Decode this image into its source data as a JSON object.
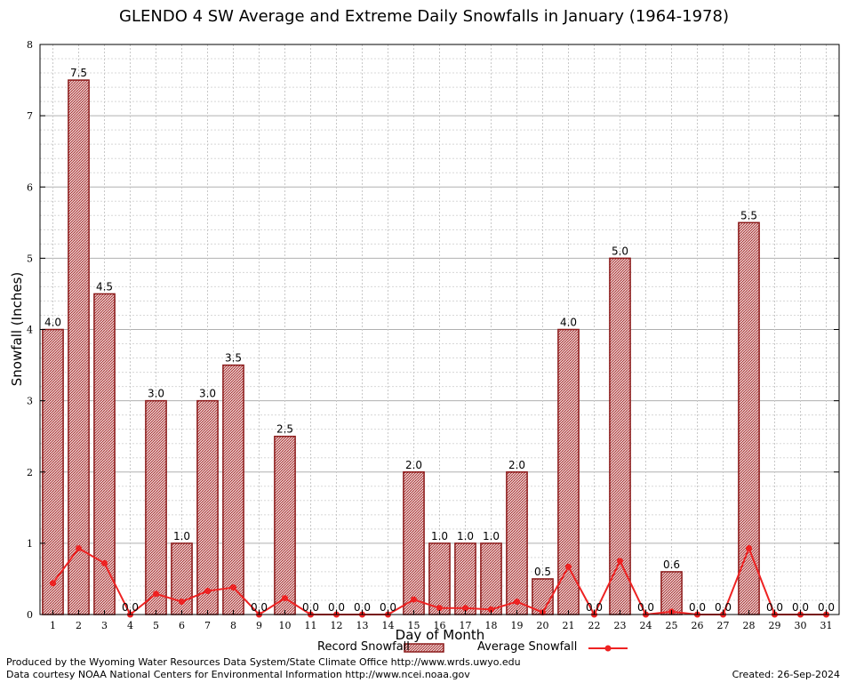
{
  "chart_data": {
    "type": "bar",
    "title": "GLENDO 4 SW Average and Extreme Daily Snowfalls in January (1964-1978)",
    "xlabel": "Day of Month",
    "ylabel": "Snowfall (Inches)",
    "ylim": [
      0,
      8
    ],
    "yticks": [
      "0",
      "1",
      "2",
      "3",
      "4",
      "5",
      "6",
      "7",
      "8"
    ],
    "categories": [
      "1",
      "2",
      "3",
      "4",
      "5",
      "6",
      "7",
      "8",
      "9",
      "10",
      "11",
      "12",
      "13",
      "14",
      "15",
      "16",
      "17",
      "18",
      "19",
      "20",
      "21",
      "22",
      "23",
      "24",
      "25",
      "26",
      "27",
      "28",
      "29",
      "30",
      "31"
    ],
    "series": [
      {
        "name": "Record Snowfall",
        "type": "bar",
        "color": "#a52a2a",
        "values": [
          4.0,
          7.5,
          4.5,
          0.0,
          3.0,
          1.0,
          3.0,
          3.5,
          0.0,
          2.5,
          0.0,
          0.0,
          0.0,
          0.0,
          2.0,
          1.0,
          1.0,
          1.0,
          2.0,
          0.5,
          4.0,
          0.0,
          5.0,
          0.0,
          0.6,
          0.0,
          0.0,
          5.5,
          0.0,
          0.0,
          0.0
        ],
        "labels": [
          "4.0",
          "7.5",
          "4.5",
          "0.0",
          "3.0",
          "1.0",
          "3.0",
          "3.5",
          "0.0",
          "2.5",
          "0.0",
          "0.0",
          "0.0",
          "0.0",
          "2.0",
          "1.0",
          "1.0",
          "1.0",
          "2.0",
          "0.5",
          "4.0",
          "0.0",
          "5.0",
          "0.0",
          "0.6",
          "0.0",
          "0.0",
          "5.5",
          "0.0",
          "0.0",
          "0.0"
        ]
      },
      {
        "name": "Average Snowfall",
        "type": "line",
        "color": "#ee2222",
        "values": [
          0.44,
          0.93,
          0.72,
          0.0,
          0.29,
          0.18,
          0.33,
          0.38,
          0.0,
          0.23,
          0.0,
          0.0,
          0.0,
          0.0,
          0.21,
          0.09,
          0.09,
          0.07,
          0.18,
          0.03,
          0.67,
          0.0,
          0.75,
          0.0,
          0.04,
          0.0,
          0.0,
          0.93,
          0.0,
          0.0,
          0.0
        ]
      }
    ],
    "grid": true,
    "legend_position": "bottom"
  },
  "footer": {
    "produced": "Produced by the Wyoming Water Resources Data System/State Climate Office http://www.wrds.uwyo.edu",
    "courtesy": "Data courtesy NOAA National Centers for Environmental Information http://www.ncei.noaa.gov",
    "created": "Created: 26-Sep-2024"
  }
}
